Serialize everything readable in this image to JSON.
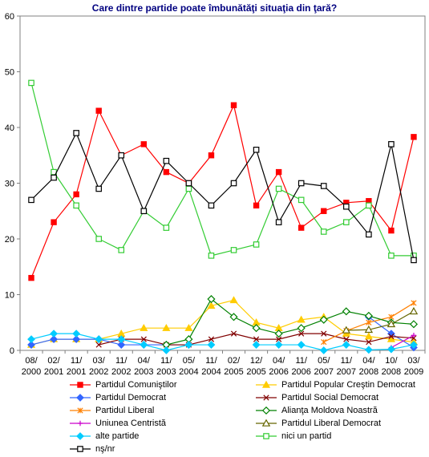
{
  "title": "Care dintre partide poate îmbunătăţi situaţia din ţară?",
  "chart_data": {
    "type": "line",
    "title": "Care dintre partide poate îmbunătăţi situaţia din ţară?",
    "ylim": [
      0,
      60
    ],
    "yticks": [
      "0",
      "10",
      "20",
      "30",
      "40",
      "50",
      "60"
    ],
    "categories": [
      [
        "08/",
        "2000"
      ],
      [
        "02/",
        "2001"
      ],
      [
        "11/",
        "2001"
      ],
      [
        "03/",
        "2002"
      ],
      [
        "11/",
        "2002"
      ],
      [
        "04/",
        "2003"
      ],
      [
        "11/",
        "2003"
      ],
      [
        "05/",
        "2004"
      ],
      [
        "11/",
        "2004"
      ],
      [
        "02/",
        "2005"
      ],
      [
        "12/",
        "2005"
      ],
      [
        "04/",
        "2006"
      ],
      [
        "11/",
        "2006"
      ],
      [
        "05/",
        "2007"
      ],
      [
        "11/",
        "2007"
      ],
      [
        "04/",
        "2008"
      ],
      [
        "10/",
        "2008"
      ],
      [
        "03/",
        "2009"
      ]
    ],
    "grid": false,
    "legend_position": "bottom",
    "series": [
      {
        "name": "Partidul Comuniştilor",
        "color": "#ff0000",
        "marker": "square-filled",
        "values": [
          13,
          23,
          28,
          43,
          35,
          37,
          32,
          30,
          35,
          44,
          26,
          32,
          22,
          25,
          26.5,
          26.8,
          21.5,
          38.3
        ]
      },
      {
        "name": "Partidul Popular Creştin Democrat",
        "color": "#ffcc00",
        "marker": "triangle-filled",
        "values": [
          1,
          2,
          2,
          2,
          3,
          4,
          4,
          4,
          8,
          9,
          5,
          4,
          5.5,
          6,
          3,
          2.5,
          2,
          1.5
        ]
      },
      {
        "name": "Partidul Democrat",
        "color": "#3366ff",
        "marker": "diamond-filled",
        "values": [
          1,
          2,
          2,
          2,
          1,
          1,
          1,
          1,
          null,
          null,
          null,
          null,
          null,
          null,
          null,
          6,
          3,
          0.5
        ]
      },
      {
        "name": "Partidul Social Democrat",
        "color": "#800000",
        "marker": "x",
        "values": [
          null,
          null,
          null,
          1,
          2,
          2,
          1,
          1,
          2,
          3,
          2,
          2,
          3,
          3,
          2,
          1.5,
          2.5,
          2.2
        ]
      },
      {
        "name": "Partidul Liberal",
        "color": "#ff8000",
        "marker": "star",
        "values": [
          null,
          null,
          null,
          null,
          null,
          null,
          null,
          null,
          null,
          null,
          null,
          null,
          null,
          1.5,
          3.5,
          5,
          6,
          8.5
        ]
      },
      {
        "name": "Alianţa Moldova Noastră",
        "color": "#008000",
        "marker": "diamond-open",
        "values": [
          null,
          null,
          null,
          null,
          null,
          null,
          1,
          2,
          9.2,
          6,
          4,
          3,
          4,
          5.5,
          7,
          6.2,
          5,
          4.7
        ]
      },
      {
        "name": "Uniunea Centristă",
        "color": "#cc00cc",
        "marker": "plus",
        "values": [
          null,
          null,
          null,
          null,
          null,
          null,
          null,
          null,
          null,
          null,
          null,
          null,
          null,
          null,
          null,
          null,
          0.5,
          2.7
        ]
      },
      {
        "name": "Partidul Liberal Democrat",
        "color": "#666600",
        "marker": "triangle-open",
        "values": [
          null,
          null,
          null,
          null,
          null,
          null,
          null,
          null,
          null,
          null,
          null,
          null,
          null,
          null,
          3.6,
          3.7,
          4.7,
          7
        ]
      },
      {
        "name": "alte partide",
        "color": "#00ccff",
        "marker": "diamond-filled",
        "values": [
          2,
          3,
          3,
          2,
          2,
          1,
          0,
          1,
          1,
          null,
          1,
          1,
          1,
          0,
          1,
          0.1,
          0.2,
          1
        ]
      },
      {
        "name": "nici un partid",
        "color": "#33cc33",
        "marker": "square-open",
        "values": [
          48,
          32,
          26,
          20,
          18,
          25,
          22,
          29,
          17,
          18,
          19,
          29,
          27,
          21.3,
          23,
          26,
          17,
          17
        ]
      },
      {
        "name": "nş/nr",
        "color": "#000000",
        "marker": "square-open",
        "values": [
          27,
          31,
          39,
          29,
          35,
          25,
          34,
          30,
          26,
          30,
          36,
          23,
          30,
          29.5,
          25.8,
          20.8,
          37,
          16.2
        ]
      }
    ]
  }
}
